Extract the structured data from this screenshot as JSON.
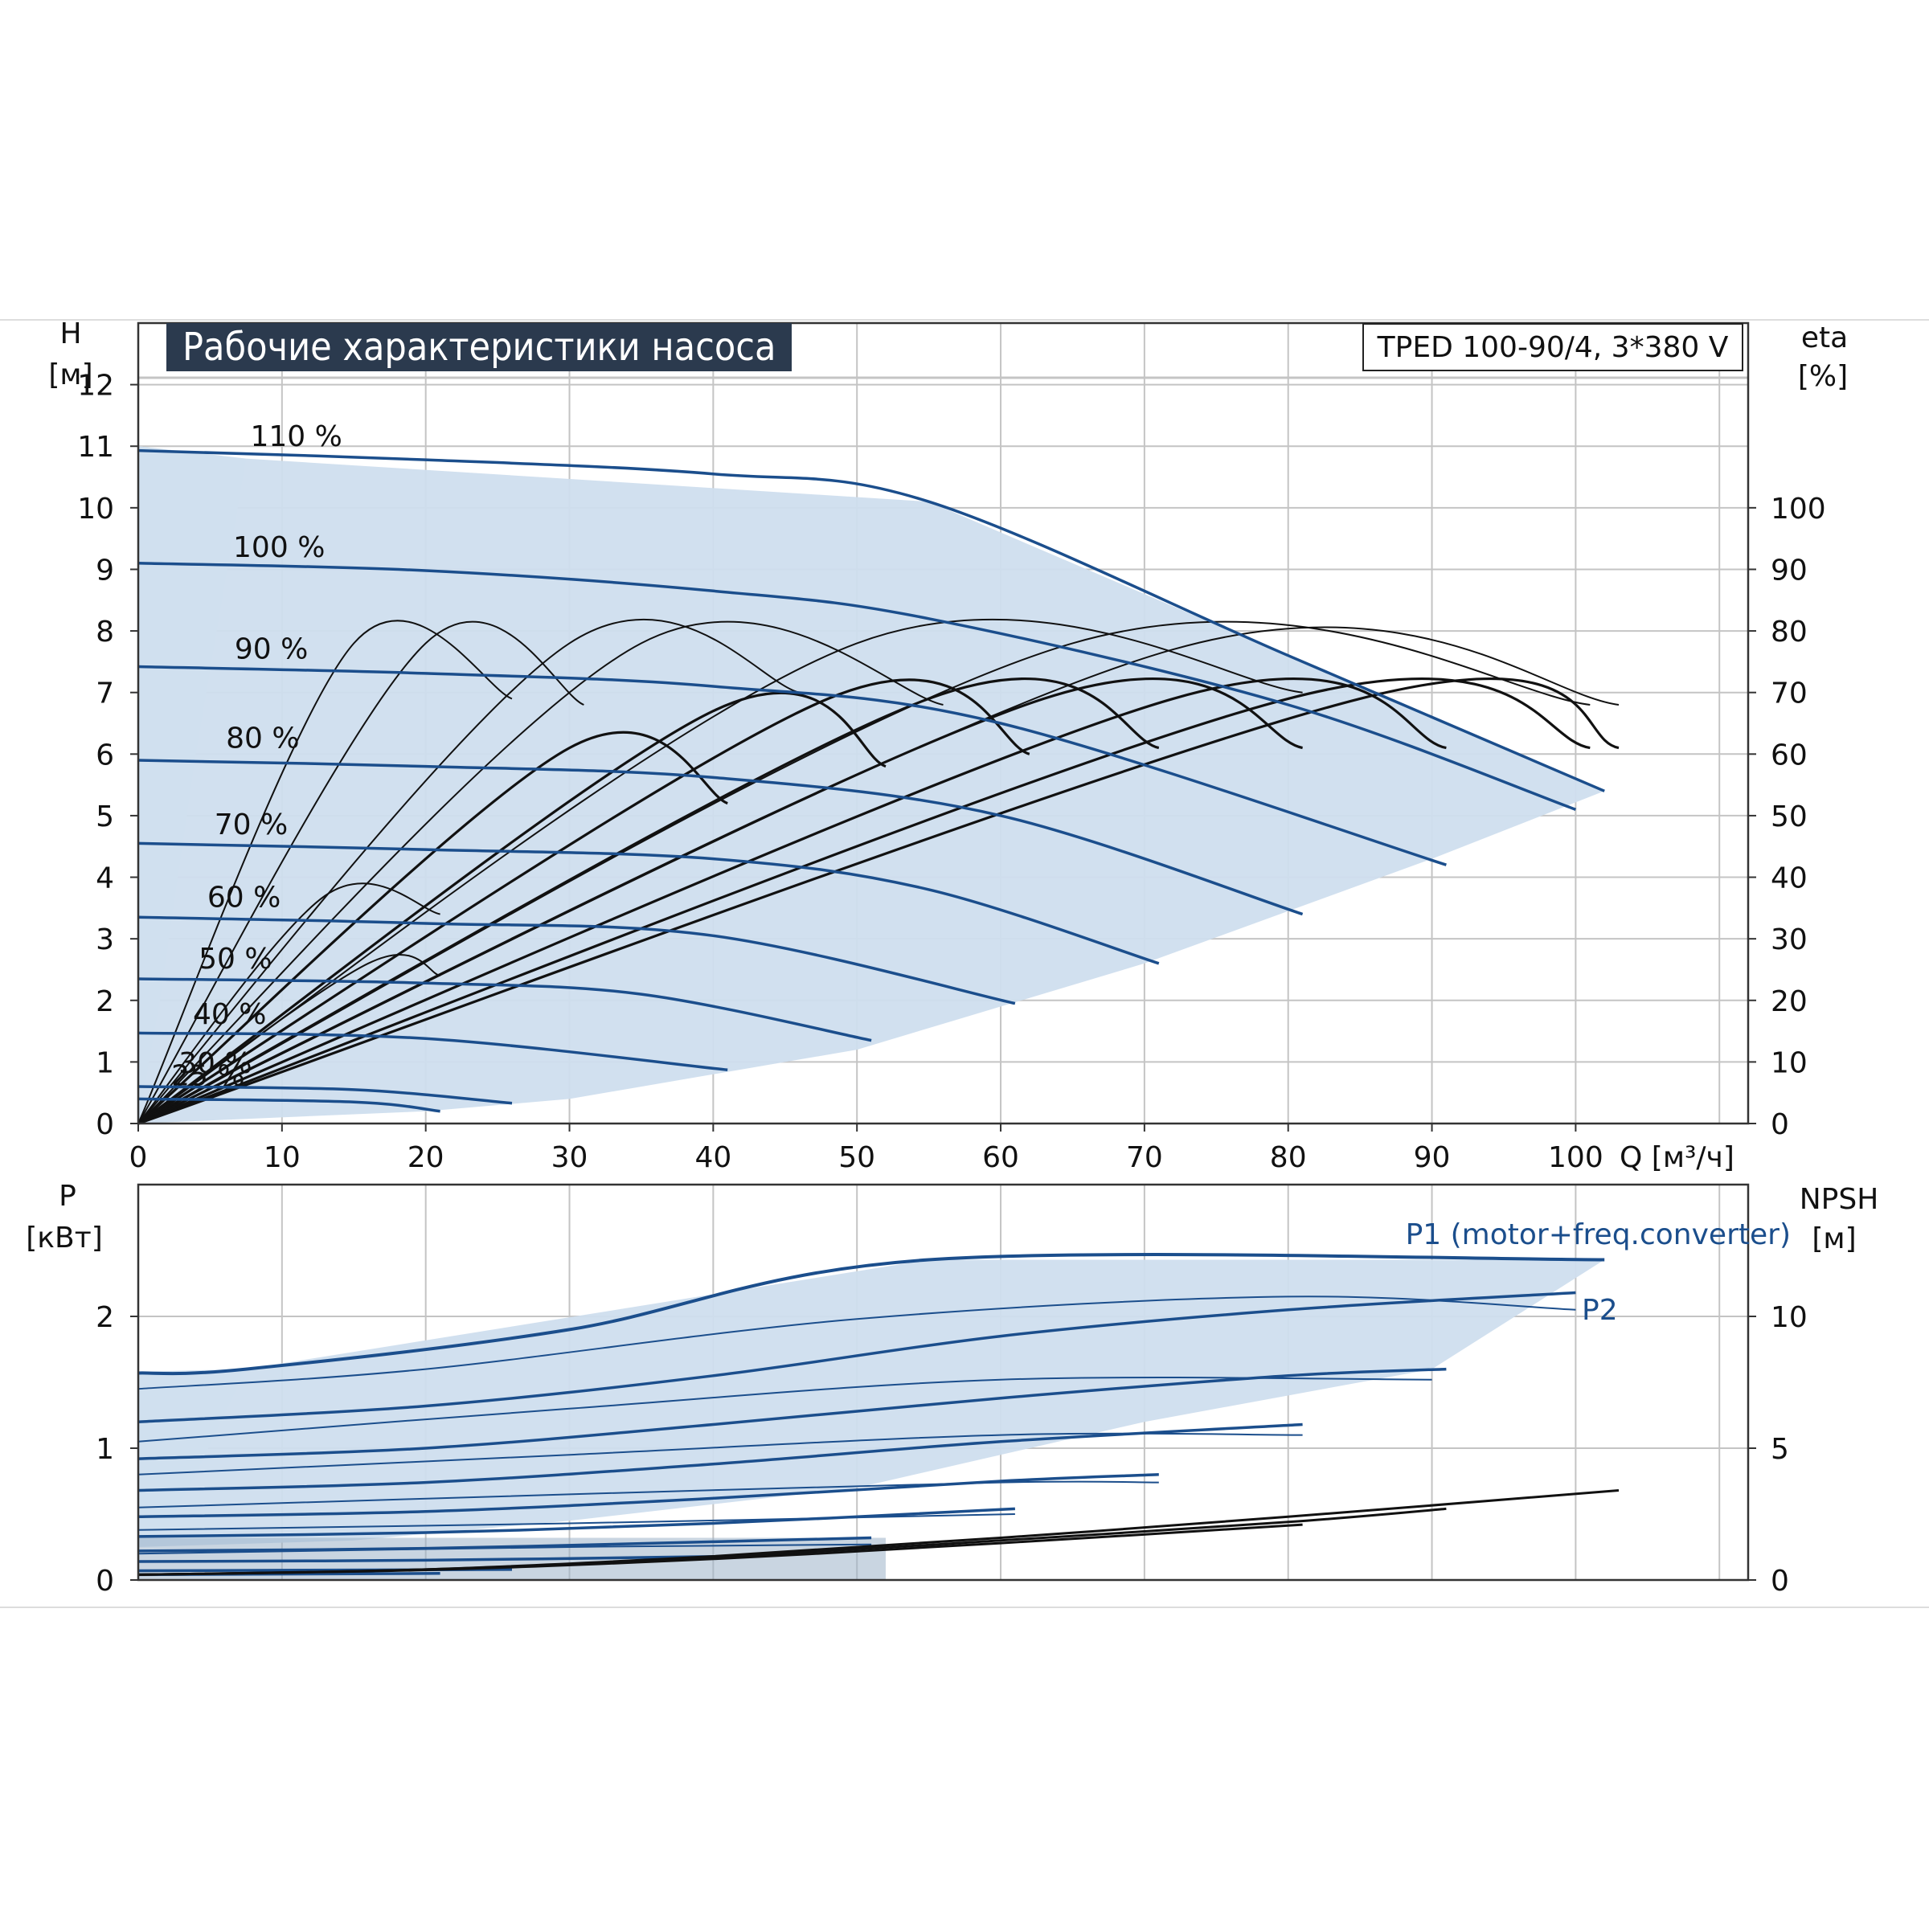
{
  "header": {
    "title": "Рабочие характеристики насоса",
    "model": "TPED 100-90/4, 3*380 V"
  },
  "chart_data": [
    {
      "type": "line",
      "panel": "head-efficiency",
      "ylabel": "H",
      "yunit": "[м]",
      "y2label": "eta",
      "y2unit": "[%]",
      "xlabel": "Q [м³/ч]",
      "xlim": [
        0,
        112
      ],
      "ylim": [
        0,
        13
      ],
      "y2lim": [
        0,
        130
      ],
      "x_ticks": [
        0,
        10,
        20,
        30,
        40,
        50,
        60,
        70,
        80,
        90,
        100
      ],
      "y_ticks": [
        0,
        1,
        2,
        3,
        4,
        5,
        6,
        7,
        8,
        9,
        10,
        11,
        12
      ],
      "y2_ticks": [
        0,
        10,
        20,
        30,
        40,
        50,
        60,
        70,
        80,
        90,
        100
      ],
      "grid": true,
      "operating_area": [
        [
          0,
          11
        ],
        [
          7.5,
          10.8
        ],
        [
          55,
          10.1
        ],
        [
          102,
          5.4
        ],
        [
          90,
          4.3
        ],
        [
          70,
          2.6
        ],
        [
          50,
          1.2
        ],
        [
          30,
          0.4
        ],
        [
          20,
          0.2
        ],
        [
          0,
          0
        ]
      ],
      "speed_series": [
        {
          "name": "110 %",
          "points": [
            [
              0,
              10.93
            ],
            [
              20,
              10.78
            ],
            [
              40,
              10.55
            ],
            [
              55,
              10.1
            ],
            [
              80,
              7.6
            ],
            [
              102,
              5.4
            ]
          ]
        },
        {
          "name": "100 %",
          "points": [
            [
              0,
              9.1
            ],
            [
              20,
              8.98
            ],
            [
              40,
              8.65
            ],
            [
              55,
              8.2
            ],
            [
              80,
              6.8
            ],
            [
              100,
              5.1
            ]
          ]
        },
        {
          "name": "90 %",
          "points": [
            [
              0,
              7.42
            ],
            [
              20,
              7.31
            ],
            [
              40,
              7.1
            ],
            [
              60,
              6.5
            ],
            [
              91,
              4.2
            ]
          ]
        },
        {
          "name": "80 %",
          "points": [
            [
              0,
              5.9
            ],
            [
              20,
              5.8
            ],
            [
              40,
              5.62
            ],
            [
              60,
              5.0
            ],
            [
              81,
              3.4
            ]
          ]
        },
        {
          "name": "70 %",
          "points": [
            [
              0,
              4.55
            ],
            [
              20,
              4.45
            ],
            [
              40,
              4.3
            ],
            [
              55,
              3.8
            ],
            [
              71,
              2.6
            ]
          ]
        },
        {
          "name": "60 %",
          "points": [
            [
              0,
              3.35
            ],
            [
              20,
              3.25
            ],
            [
              40,
              3.05
            ],
            [
              61,
              1.95
            ]
          ]
        },
        {
          "name": "50 %",
          "points": [
            [
              0,
              2.35
            ],
            [
              20,
              2.28
            ],
            [
              35,
              2.1
            ],
            [
              51,
              1.35
            ]
          ]
        },
        {
          "name": "40 %",
          "points": [
            [
              0,
              1.47
            ],
            [
              20,
              1.38
            ],
            [
              41,
              0.87
            ]
          ]
        },
        {
          "name": "30 %",
          "points": [
            [
              0,
              0.6
            ],
            [
              15,
              0.55
            ],
            [
              26,
              0.33
            ]
          ]
        },
        {
          "name": "25 %",
          "points": [
            [
              0,
              0.4
            ],
            [
              15,
              0.35
            ],
            [
              21,
              0.2
            ]
          ]
        }
      ],
      "efficiency_series": [
        {
          "points": [
            [
              0,
              0
            ],
            [
              15,
              78
            ],
            [
              26,
              69
            ]
          ]
        },
        {
          "points": [
            [
              0,
              0
            ],
            [
              20,
              78
            ],
            [
              31,
              68
            ]
          ]
        },
        {
          "points": [
            [
              0,
              0
            ],
            [
              30,
              78
            ],
            [
              46,
              70
            ]
          ]
        },
        {
          "points": [
            [
              0,
              0
            ],
            [
              35,
              78
            ],
            [
              56,
              68
            ]
          ]
        },
        {
          "points": [
            [
              0,
              0
            ],
            [
              50,
              78
            ],
            [
              81,
              70
            ]
          ]
        },
        {
          "points": [
            [
              0,
              0
            ],
            [
              65,
              78
            ],
            [
              101,
              68
            ]
          ]
        },
        {
          "points": [
            [
              0,
              0
            ],
            [
              72,
              77
            ],
            [
              103,
              68
            ]
          ]
        },
        {
          "points": [
            [
              0,
              0
            ],
            [
              13,
              37
            ],
            [
              21,
              34
            ]
          ]
        },
        {
          "points": [
            [
              0,
              0
            ],
            [
              16,
              26
            ],
            [
              21,
              24
            ]
          ]
        },
        {
          "points": [
            [
              0,
              0
            ],
            [
              30,
              61
            ],
            [
              41,
              52
            ]
          ]
        },
        {
          "points": [
            [
              0,
              0
            ],
            [
              40,
              67
            ],
            [
              52,
              58
            ]
          ]
        },
        {
          "points": [
            [
              0,
              0
            ],
            [
              48,
              69
            ],
            [
              62,
              60
            ]
          ]
        },
        {
          "points": [
            [
              0,
              0
            ],
            [
              55,
              69
            ],
            [
              71,
              61
            ]
          ]
        },
        {
          "points": [
            [
              0,
              0
            ],
            [
              63,
              69
            ],
            [
              81,
              61
            ]
          ]
        },
        {
          "points": [
            [
              0,
              0
            ],
            [
              72,
              69
            ],
            [
              91,
              61
            ]
          ]
        },
        {
          "points": [
            [
              0,
              0
            ],
            [
              80,
              69
            ],
            [
              101,
              61
            ]
          ]
        },
        {
          "points": [
            [
              0,
              0
            ],
            [
              85,
              69
            ],
            [
              103,
              61
            ]
          ]
        }
      ]
    },
    {
      "type": "line",
      "panel": "power-npsh",
      "ylabel": "P",
      "yunit": "[кВт]",
      "y2label": "NPSH",
      "y2unit": "[м]",
      "xlim": [
        0,
        112
      ],
      "ylim": [
        0,
        3
      ],
      "y2lim": [
        0,
        15
      ],
      "y_ticks": [
        0,
        1,
        2
      ],
      "y2_ticks": [
        0,
        5,
        10
      ],
      "grid": true,
      "series_labels": [
        "P1 (motor+freq.converter)",
        "P2"
      ],
      "operating_area": [
        [
          0,
          1.58
        ],
        [
          7.5,
          1.6
        ],
        [
          55,
          2.43
        ],
        [
          102,
          2.43
        ],
        [
          90,
          1.6
        ],
        [
          70,
          1.2
        ],
        [
          50,
          0.7
        ],
        [
          30,
          0.45
        ],
        [
          15,
          0.3
        ],
        [
          0,
          0.25
        ]
      ],
      "p1_series": [
        {
          "points": [
            [
              0,
              1.57
            ],
            [
              7.5,
              1.6
            ],
            [
              30,
              1.9
            ],
            [
              55,
              2.43
            ],
            [
              102,
              2.43
            ]
          ]
        },
        {
          "points": [
            [
              0,
              1.2
            ],
            [
              20,
              1.32
            ],
            [
              40,
              1.55
            ],
            [
              60,
              1.85
            ],
            [
              80,
              2.05
            ],
            [
              100,
              2.18
            ]
          ]
        },
        {
          "points": [
            [
              0,
              0.92
            ],
            [
              20,
              1.0
            ],
            [
              40,
              1.18
            ],
            [
              60,
              1.38
            ],
            [
              80,
              1.55
            ],
            [
              91,
              1.6
            ]
          ]
        },
        {
          "points": [
            [
              0,
              0.68
            ],
            [
              20,
              0.74
            ],
            [
              40,
              0.88
            ],
            [
              60,
              1.05
            ],
            [
              81,
              1.18
            ]
          ]
        },
        {
          "points": [
            [
              0,
              0.48
            ],
            [
              20,
              0.52
            ],
            [
              40,
              0.62
            ],
            [
              60,
              0.75
            ],
            [
              71,
              0.8
            ]
          ]
        },
        {
          "points": [
            [
              0,
              0.33
            ],
            [
              20,
              0.36
            ],
            [
              40,
              0.43
            ],
            [
              61,
              0.54
            ]
          ]
        },
        {
          "points": [
            [
              0,
              0.22
            ],
            [
              20,
              0.24
            ],
            [
              40,
              0.29
            ],
            [
              51,
              0.32
            ]
          ]
        },
        {
          "points": [
            [
              0,
              0.14
            ],
            [
              20,
              0.15
            ],
            [
              41,
              0.18
            ]
          ]
        },
        {
          "points": [
            [
              0,
              0.07
            ],
            [
              26,
              0.08
            ]
          ]
        },
        {
          "points": [
            [
              0,
              0.04
            ],
            [
              21,
              0.05
            ]
          ]
        }
      ],
      "p2_series": [
        {
          "points": [
            [
              0,
              1.45
            ],
            [
              20,
              1.6
            ],
            [
              50,
              1.98
            ],
            [
              80,
              2.15
            ],
            [
              100,
              2.05
            ]
          ]
        },
        {
          "points": [
            [
              0,
              1.05
            ],
            [
              30,
              1.3
            ],
            [
              60,
              1.52
            ],
            [
              90,
              1.52
            ]
          ]
        },
        {
          "points": [
            [
              0,
              0.8
            ],
            [
              30,
              0.95
            ],
            [
              60,
              1.1
            ],
            [
              81,
              1.1
            ]
          ]
        },
        {
          "points": [
            [
              0,
              0.55
            ],
            [
              30,
              0.65
            ],
            [
              60,
              0.74
            ],
            [
              71,
              0.74
            ]
          ]
        },
        {
          "points": [
            [
              0,
              0.38
            ],
            [
              30,
              0.43
            ],
            [
              61,
              0.5
            ]
          ]
        },
        {
          "points": [
            [
              0,
              0.2
            ],
            [
              30,
              0.25
            ],
            [
              51,
              0.27
            ]
          ]
        }
      ],
      "npsh_series": [
        {
          "points": [
            [
              0,
              0.2
            ],
            [
              20,
              0.4
            ],
            [
              40,
              0.9
            ],
            [
              60,
              1.6
            ],
            [
              80,
              2.4
            ],
            [
              103,
              3.4
            ]
          ]
        },
        {
          "points": [
            [
              0,
              0.2
            ],
            [
              20,
              0.4
            ],
            [
              40,
              0.85
            ],
            [
              60,
              1.5
            ],
            [
              80,
              2.2
            ],
            [
              91,
              2.7
            ]
          ]
        },
        {
          "points": [
            [
              0,
              0.2
            ],
            [
              20,
              0.38
            ],
            [
              40,
              0.8
            ],
            [
              60,
              1.4
            ],
            [
              81,
              2.1
            ]
          ]
        }
      ]
    }
  ]
}
